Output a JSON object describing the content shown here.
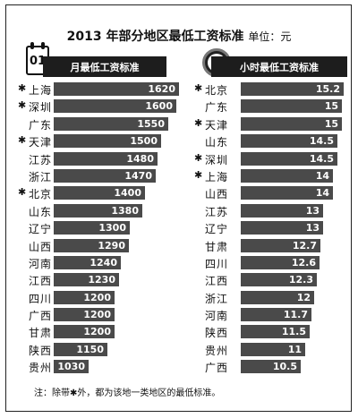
{
  "header": {
    "title": "2013 年部分地区最低工资标准",
    "unit": "单位：元"
  },
  "chart_data": [
    {
      "type": "bar",
      "title": "月最低工资标准",
      "icon": "calendar-icon",
      "icon_text": "01",
      "categories": [
        "上海",
        "深圳",
        "广东",
        "天津",
        "江苏",
        "浙江",
        "北京",
        "山东",
        "辽宁",
        "山西",
        "河南",
        "江西",
        "四川",
        "广西",
        "甘肃",
        "陕西",
        "贵州"
      ],
      "starred": [
        true,
        true,
        false,
        true,
        false,
        false,
        true,
        false,
        false,
        false,
        false,
        false,
        false,
        false,
        false,
        false,
        false
      ],
      "values": [
        1620,
        1600,
        1550,
        1500,
        1480,
        1470,
        1400,
        1380,
        1300,
        1290,
        1240,
        1230,
        1200,
        1200,
        1200,
        1150,
        1030
      ],
      "labels": [
        "1620",
        "1600",
        "1550",
        "1500",
        "1480",
        "1470",
        "1400",
        "1380",
        "1300",
        "1290",
        "1240",
        "1230",
        "1200",
        "1200",
        "1200",
        "1150",
        "1030"
      ]
    },
    {
      "type": "bar",
      "title": "小时最低工资标准",
      "icon": "clock-icon",
      "categories": [
        "北京",
        "广东",
        "天津",
        "山东",
        "深圳",
        "上海",
        "山西",
        "江苏",
        "辽宁",
        "甘肃",
        "四川",
        "江西",
        "浙江",
        "河南",
        "陕西",
        "贵州",
        "广西"
      ],
      "starred": [
        true,
        false,
        true,
        false,
        true,
        true,
        false,
        false,
        false,
        false,
        false,
        false,
        false,
        false,
        false,
        false,
        false
      ],
      "values": [
        15.2,
        15,
        15,
        14.5,
        14.5,
        14,
        14,
        13,
        13,
        12.7,
        12.6,
        12.3,
        12,
        11.7,
        11.5,
        11,
        10.5
      ],
      "labels": [
        "15.2",
        "15",
        "15",
        "14.5",
        "14.5",
        "14",
        "14",
        "13",
        "13",
        "12.7",
        "12.6",
        "12.3",
        "12",
        "11.7",
        "11.5",
        "11",
        "10.5"
      ]
    }
  ],
  "star_symbol": "✱",
  "note": "注：除带✱外，都为该地一类地区的最低标准。",
  "colors": {
    "bar": "#4a4a4a",
    "header": "#1d1d1d"
  }
}
